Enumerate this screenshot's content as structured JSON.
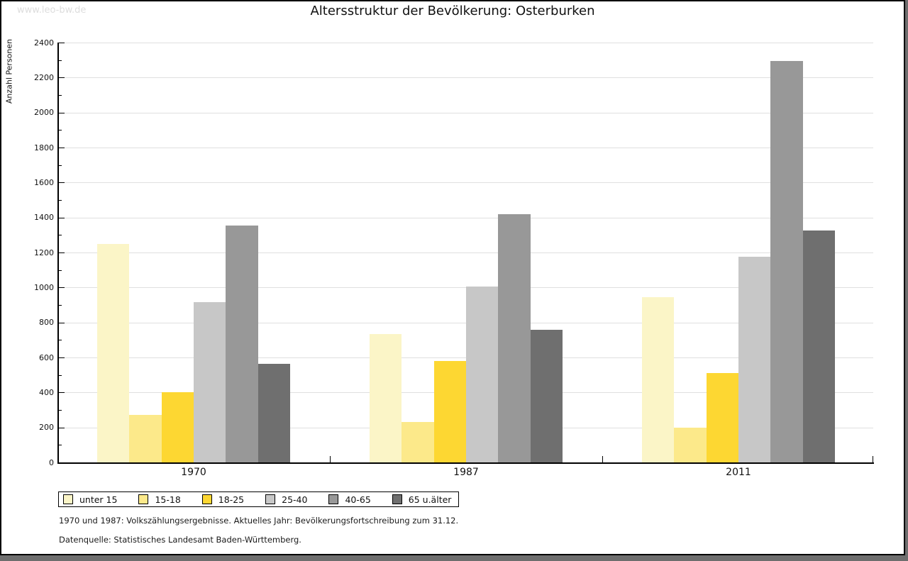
{
  "watermark": "www.leo-bw.de",
  "title": "Altersstruktur der Bevölkerung: Osterburken",
  "footer": {
    "line1": "1970 und 1987: Volkszählungsergebnisse. Aktuelles Jahr: Bevölkerungsfortschreibung zum 31.12.",
    "line2": "Datenquelle: Statistisches Landesamt Baden-Württemberg."
  },
  "chart_data": {
    "type": "bar",
    "title": "Altersstruktur der Bevölkerung: Osterburken",
    "ylabel": "Anzahl Personen",
    "xlabel": "",
    "categories": [
      "1970",
      "1987",
      "2011"
    ],
    "series": [
      {
        "name": "unter 15",
        "color": "#FBF5C7",
        "values": [
          1250,
          735,
          945
        ]
      },
      {
        "name": "15-18",
        "color": "#FCE98A",
        "values": [
          270,
          230,
          200
        ]
      },
      {
        "name": "18-25",
        "color": "#FDD732",
        "values": [
          400,
          580,
          510
        ]
      },
      {
        "name": "25-40",
        "color": "#C7C7C7",
        "values": [
          915,
          1005,
          1175
        ]
      },
      {
        "name": "40-65",
        "color": "#989898",
        "values": [
          1355,
          1420,
          2295
        ]
      },
      {
        "name": "65 u.älter",
        "color": "#6F6F6F",
        "values": [
          565,
          760,
          1325
        ]
      }
    ],
    "ylim": [
      0,
      2400
    ],
    "ytick_step": 200,
    "yminor_step": 100,
    "grid": true,
    "gridline_color": "#e0e0e0",
    "axis_color": "#000000",
    "legend_position": "bottom-left"
  }
}
